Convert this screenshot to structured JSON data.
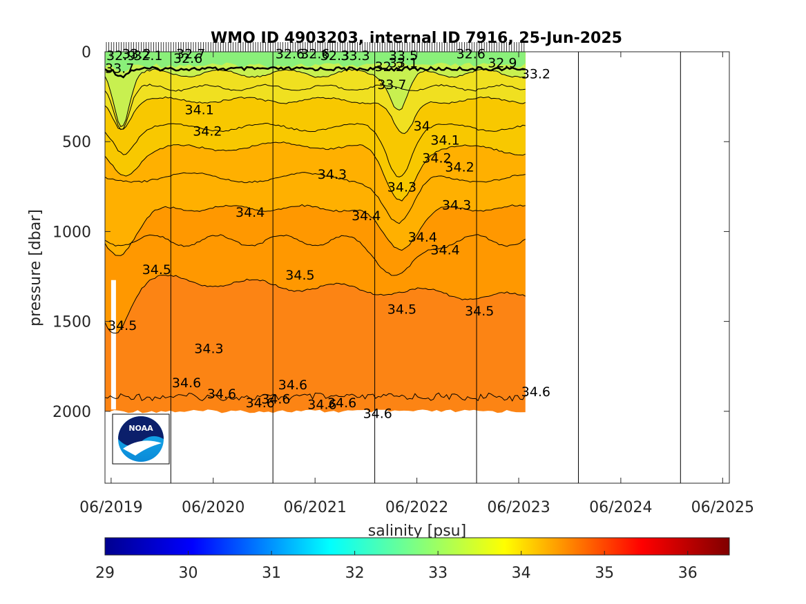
{
  "chart_data": {
    "type": "heatmap",
    "title": "WMO ID 4903203, internal ID 7916, 25-Jun-2025",
    "ylabel": "pressure [dbar]",
    "y_reversed": true,
    "ylim": [
      0,
      2400
    ],
    "yticks": [
      0,
      500,
      1000,
      1500,
      2000
    ],
    "xlim": [
      "2019-05-10",
      "2025-06-25"
    ],
    "xticks": [
      "06/2019",
      "06/2020",
      "06/2021",
      "06/2022",
      "06/2023",
      "06/2024",
      "06/2025"
    ],
    "year_boundaries": [
      "01/2020",
      "01/2021",
      "01/2022",
      "01/2023",
      "01/2024",
      "01/2025"
    ],
    "data_time_range": [
      "2019-05-10",
      "2023-06-25"
    ],
    "colorbar": {
      "label": "salinity [psu]",
      "range": [
        29,
        36.5
      ],
      "ticks": [
        29,
        30,
        31,
        32,
        33,
        34,
        35,
        36
      ],
      "colormap": "jet"
    },
    "field_colors": {
      "surface_fresh": "#8af07a",
      "s_33_5": "#c8f050",
      "s_33_9": "#f0e020",
      "s_34_1": "#f8c800",
      "s_34_3": "#ffb000",
      "s_34_5": "#ff9800",
      "s_34_6": "#fc8414"
    },
    "contour_labels": [
      {
        "text": "32.9",
        "date": "2019-05-15",
        "p": 20
      },
      {
        "text": "33.2",
        "date": "2019-07-10",
        "p": 10
      },
      {
        "text": "32.1",
        "date": "2019-08-20",
        "p": 20
      },
      {
        "text": "33.7",
        "date": "2019-05-10",
        "p": 90
      },
      {
        "text": "32.6",
        "date": "2020-01-10",
        "p": 35
      },
      {
        "text": "32.7",
        "date": "2020-01-20",
        "p": 10
      },
      {
        "text": "34.1",
        "date": "2020-02-20",
        "p": 320
      },
      {
        "text": "34.2",
        "date": "2020-03-20",
        "p": 440
      },
      {
        "text": "34.4",
        "date": "2020-08-20",
        "p": 890
      },
      {
        "text": "34.5",
        "date": "2019-09-20",
        "p": 1210
      },
      {
        "text": "34.5",
        "date": "2019-05-20",
        "p": 1520
      },
      {
        "text": "34.3",
        "date": "2020-03-25",
        "p": 1650
      },
      {
        "text": "34.6",
        "date": "2020-01-05",
        "p": 1840
      },
      {
        "text": "34.6",
        "date": "2020-05-10",
        "p": 1900
      },
      {
        "text": "34.6",
        "date": "2020-09-25",
        "p": 1950
      },
      {
        "text": "34.6",
        "date": "2020-11-20",
        "p": 1930
      },
      {
        "text": "34.6",
        "date": "2021-01-20",
        "p": 1850
      },
      {
        "text": "34.6",
        "date": "2021-05-05",
        "p": 1960
      },
      {
        "text": "34.6",
        "date": "2021-07-15",
        "p": 1950
      },
      {
        "text": "34.6",
        "date": "2021-11-20",
        "p": 2010
      },
      {
        "text": "34.5",
        "date": "2021-02-15",
        "p": 1240
      },
      {
        "text": "34.3",
        "date": "2021-06-10",
        "p": 680
      },
      {
        "text": "34.4",
        "date": "2021-10-10",
        "p": 910
      },
      {
        "text": "32.6",
        "date": "2021-01-10",
        "p": 10
      },
      {
        "text": "32.6",
        "date": "2021-04-10",
        "p": 10
      },
      {
        "text": "32.3",
        "date": "2021-06-20",
        "p": 20
      },
      {
        "text": "33.3",
        "date": "2021-09-01",
        "p": 20
      },
      {
        "text": "32.2",
        "date": "2022-01-01",
        "p": 80
      },
      {
        "text": "33.7",
        "date": "2022-01-10",
        "p": 180
      },
      {
        "text": "33.5",
        "date": "2022-02-20",
        "p": 20
      },
      {
        "text": "33.1",
        "date": "2022-02-20",
        "p": 60
      },
      {
        "text": "34",
        "date": "2022-05-20",
        "p": 410
      },
      {
        "text": "34.1",
        "date": "2022-07-20",
        "p": 490
      },
      {
        "text": "34.2",
        "date": "2022-06-20",
        "p": 590
      },
      {
        "text": "34.2",
        "date": "2022-09-10",
        "p": 640
      },
      {
        "text": "34.3",
        "date": "2022-02-15",
        "p": 750
      },
      {
        "text": "34.3",
        "date": "2022-08-30",
        "p": 850
      },
      {
        "text": "34.4",
        "date": "2022-04-30",
        "p": 1030
      },
      {
        "text": "34.4",
        "date": "2022-07-20",
        "p": 1100
      },
      {
        "text": "34.5",
        "date": "2022-02-15",
        "p": 1430
      },
      {
        "text": "34.5",
        "date": "2022-11-20",
        "p": 1440
      },
      {
        "text": "32.6",
        "date": "2022-10-20",
        "p": 10
      },
      {
        "text": "32.9",
        "date": "2023-02-10",
        "p": 60
      },
      {
        "text": "33.2",
        "date": "2023-06-10",
        "p": 120
      },
      {
        "text": "34.6",
        "date": "2023-06-10",
        "p": 1890
      }
    ]
  }
}
